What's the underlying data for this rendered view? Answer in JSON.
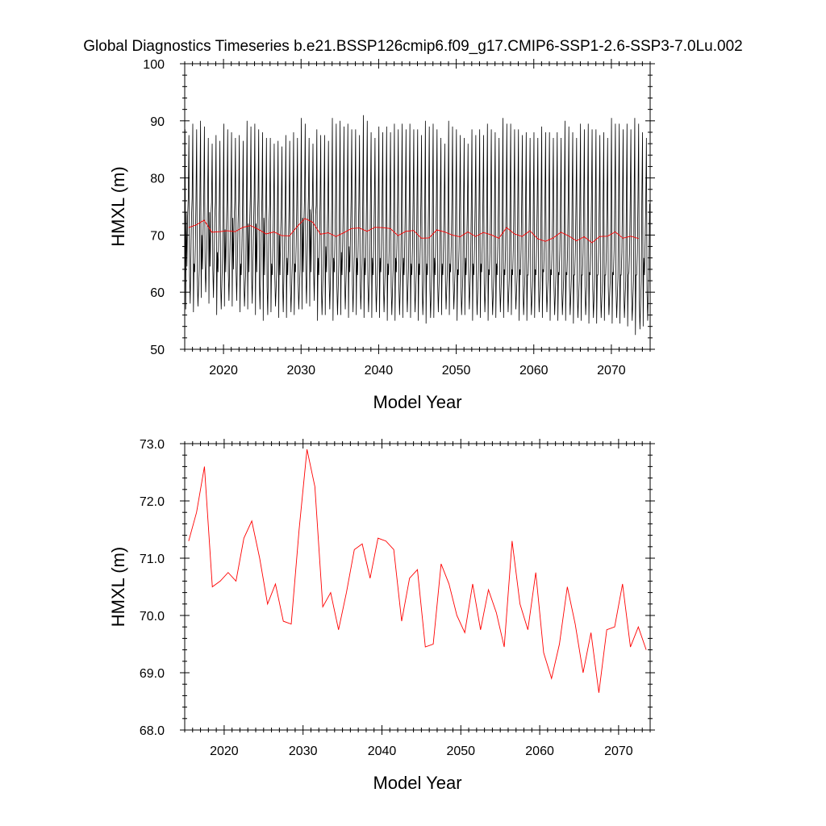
{
  "figure": {
    "title": "Global Diagnostics Timeseries b.e21.BSSP126cmip6.f09_g17.CMIP6-SSP1-2.6-SSP3-7.0Lu.002"
  },
  "colors": {
    "monthly_line": "#000000",
    "annual_line": "#ff0000",
    "frame": "#000000",
    "background": "#ffffff"
  },
  "chart_data": [
    {
      "type": "line",
      "xlabel": "Model Year",
      "ylabel": "HMXL (m)",
      "xlim": [
        2015,
        2075
      ],
      "ylim": [
        50,
        100
      ],
      "xticks": [
        2020,
        2030,
        2040,
        2050,
        2060,
        2070
      ],
      "xtick_labels": [
        "2020",
        "2030",
        "2040",
        "2050",
        "2060",
        "2070"
      ],
      "yticks": [
        50,
        60,
        70,
        80,
        90,
        100
      ],
      "ytick_labels": [
        "50",
        "60",
        "70",
        "80",
        "90",
        "100"
      ],
      "grid": false,
      "series": [
        {
          "color": "#000000",
          "kind": "monthly",
          "x_start": 2015.04,
          "x_step": 0.0833,
          "annual_max": [
            88.5,
            89.5,
            90.0,
            87.0,
            87.5,
            89.5,
            88.0,
            87.5,
            90.0,
            89.5,
            88.0,
            87.0,
            86.5,
            87.5,
            88.0,
            90.5,
            87.0,
            88.5,
            87.5,
            90.5,
            90.0,
            89.5,
            88.5,
            91.0,
            88.0,
            89.0,
            89.0,
            89.5,
            89.5,
            89.5,
            88.5,
            90.0,
            89.5,
            87.0,
            90.0,
            88.5,
            87.0,
            88.5,
            88.5,
            89.5,
            88.0,
            90.5,
            89.5,
            88.5,
            88.0,
            88.0,
            89.0,
            88.0,
            88.0,
            90.0,
            88.0,
            89.5,
            89.5,
            88.5,
            88.0,
            90.5,
            89.5,
            89.5,
            90.5,
            88.0
          ],
          "annual_min": [
            57.0,
            56.5,
            59.0,
            58.0,
            56.0,
            57.5,
            57.5,
            56.5,
            57.0,
            56.0,
            55.0,
            56.5,
            55.5,
            55.5,
            56.0,
            57.0,
            57.5,
            55.0,
            56.0,
            55.0,
            56.0,
            55.5,
            56.0,
            55.5,
            55.5,
            55.5,
            55.0,
            55.0,
            55.5,
            55.5,
            55.0,
            54.5,
            55.5,
            56.0,
            56.0,
            55.0,
            56.0,
            55.0,
            55.5,
            55.0,
            55.5,
            55.5,
            56.0,
            55.0,
            55.0,
            55.5,
            55.5,
            55.0,
            55.0,
            55.0,
            54.5,
            55.0,
            54.5,
            54.5,
            55.0,
            54.5,
            54.5,
            54.0,
            52.5,
            54.0
          ],
          "annual_secondary": [
            74.0,
            65.0,
            70.0,
            74.0,
            67.0,
            71.0,
            73.0,
            65.0,
            72.0,
            72.0,
            73.0,
            65.0,
            70.0,
            66.0,
            65.0,
            73.0,
            74.5,
            66.0,
            68.0,
            66.0,
            67.0,
            68.0,
            66.0,
            66.0,
            66.0,
            66.0,
            65.0,
            66.0,
            66.0,
            65.0,
            65.0,
            65.0,
            66.0,
            65.0,
            65.0,
            64.0,
            66.0,
            65.0,
            65.0,
            64.0,
            65.0,
            64.0,
            64.0,
            64.0,
            63.0,
            64.0,
            64.0,
            64.0,
            63.5,
            63.5,
            63.0,
            63.0,
            63.5,
            63.0,
            63.0,
            63.5,
            63.0,
            63.0,
            63.0,
            66.0
          ],
          "annual_second_trough": [
            64.5,
            63.5,
            64.0,
            64.5,
            63.5,
            63.5,
            64.0,
            63.0,
            63.5,
            63.5,
            63.0,
            63.0,
            63.0,
            63.0,
            63.5,
            63.5,
            63.5,
            63.0,
            63.5,
            63.5,
            63.0,
            63.5,
            63.0,
            63.0,
            63.0,
            63.5,
            63.0,
            63.5,
            63.0,
            63.0,
            63.0,
            63.0,
            63.0,
            63.0,
            63.5,
            63.0,
            63.0,
            63.0,
            63.5,
            63.0,
            63.0,
            63.0,
            63.0,
            63.0,
            63.0,
            63.0,
            63.5,
            63.0,
            63.0,
            63.0,
            63.0,
            63.0,
            63.0,
            63.0,
            63.0,
            63.0,
            63.0,
            63.5,
            63.0,
            63.0
          ]
        },
        {
          "color": "#ff0000",
          "kind": "annual",
          "x": [
            2015.5,
            2016.5,
            2017.5,
            2018.5,
            2019.5,
            2020.5,
            2021.5,
            2022.5,
            2023.5,
            2024.5,
            2025.5,
            2026.5,
            2027.5,
            2028.5,
            2029.5,
            2030.5,
            2031.5,
            2032.5,
            2033.5,
            2034.5,
            2035.5,
            2036.5,
            2037.5,
            2038.5,
            2039.5,
            2040.5,
            2041.5,
            2042.5,
            2043.5,
            2044.5,
            2045.5,
            2046.5,
            2047.5,
            2048.5,
            2049.5,
            2050.5,
            2051.5,
            2052.5,
            2053.5,
            2054.5,
            2055.5,
            2056.5,
            2057.5,
            2058.5,
            2059.5,
            2060.5,
            2061.5,
            2062.5,
            2063.5,
            2064.5,
            2065.5,
            2066.5,
            2067.5,
            2068.5,
            2069.5,
            2070.5,
            2071.5,
            2072.5,
            2073.5
          ],
          "values": [
            71.3,
            71.8,
            72.6,
            70.5,
            70.6,
            70.75,
            70.6,
            71.35,
            71.65,
            71.0,
            70.2,
            70.55,
            69.9,
            69.85,
            71.5,
            72.9,
            72.25,
            70.15,
            70.4,
            69.75,
            70.4,
            71.15,
            71.25,
            70.65,
            71.35,
            71.3,
            71.15,
            69.9,
            70.65,
            70.8,
            69.45,
            69.5,
            70.9,
            70.55,
            70.0,
            69.7,
            70.55,
            69.75,
            70.45,
            70.05,
            69.45,
            71.3,
            70.2,
            69.75,
            70.75,
            69.35,
            68.9,
            69.5,
            70.5,
            69.85,
            69.0,
            69.7,
            68.65,
            69.75,
            69.8,
            70.55,
            69.45,
            69.8,
            69.4
          ]
        }
      ]
    },
    {
      "type": "line",
      "xlabel": "Model Year",
      "ylabel": "HMXL (m)",
      "xlim": [
        2015,
        2074
      ],
      "ylim": [
        68.0,
        73.0
      ],
      "xticks": [
        2020,
        2030,
        2040,
        2050,
        2060,
        2070
      ],
      "xtick_labels": [
        "2020",
        "2030",
        "2040",
        "2050",
        "2060",
        "2070"
      ],
      "yticks": [
        68.0,
        69.0,
        70.0,
        71.0,
        72.0,
        73.0
      ],
      "ytick_labels": [
        "68.0",
        "69.0",
        "70.0",
        "71.0",
        "72.0",
        "73.0"
      ],
      "grid": false,
      "series": [
        {
          "color": "#ff0000",
          "kind": "annual",
          "x": [
            2015.5,
            2016.5,
            2017.5,
            2018.5,
            2019.5,
            2020.5,
            2021.5,
            2022.5,
            2023.5,
            2024.5,
            2025.5,
            2026.5,
            2027.5,
            2028.5,
            2029.5,
            2030.5,
            2031.5,
            2032.5,
            2033.5,
            2034.5,
            2035.5,
            2036.5,
            2037.5,
            2038.5,
            2039.5,
            2040.5,
            2041.5,
            2042.5,
            2043.5,
            2044.5,
            2045.5,
            2046.5,
            2047.5,
            2048.5,
            2049.5,
            2050.5,
            2051.5,
            2052.5,
            2053.5,
            2054.5,
            2055.5,
            2056.5,
            2057.5,
            2058.5,
            2059.5,
            2060.5,
            2061.5,
            2062.5,
            2063.5,
            2064.5,
            2065.5,
            2066.5,
            2067.5,
            2068.5,
            2069.5,
            2070.5,
            2071.5,
            2072.5,
            2073.5
          ],
          "values": [
            71.3,
            71.8,
            72.6,
            70.5,
            70.6,
            70.75,
            70.6,
            71.35,
            71.65,
            71.0,
            70.2,
            70.55,
            69.9,
            69.85,
            71.5,
            72.9,
            72.25,
            70.15,
            70.4,
            69.75,
            70.4,
            71.15,
            71.25,
            70.65,
            71.35,
            71.3,
            71.15,
            69.9,
            70.65,
            70.8,
            69.45,
            69.5,
            70.9,
            70.55,
            70.0,
            69.7,
            70.55,
            69.75,
            70.45,
            70.05,
            69.45,
            71.3,
            70.2,
            69.75,
            70.75,
            69.35,
            68.9,
            69.5,
            70.5,
            69.85,
            69.0,
            69.7,
            68.65,
            69.75,
            69.8,
            70.55,
            69.45,
            69.8,
            69.4
          ]
        }
      ]
    }
  ]
}
